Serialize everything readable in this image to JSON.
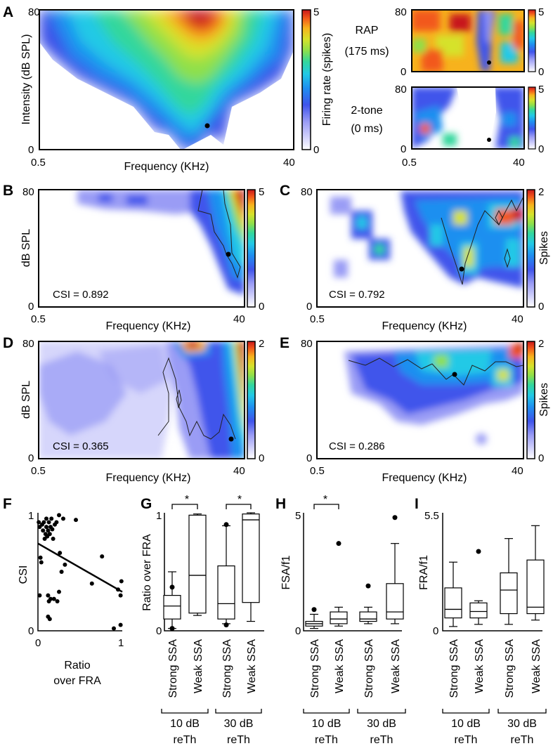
{
  "colors": {
    "cmap": [
      "#ffffff",
      "#d6d6fb",
      "#9a9cf5",
      "#4158ec",
      "#1f8ff0",
      "#22c9e6",
      "#33d79c",
      "#8fe04a",
      "#d6e22b",
      "#f7b21d",
      "#f2581a",
      "#c7161b"
    ]
  },
  "panels": [
    {
      "letter": "A",
      "xlabel": "Frequency (KHz)",
      "ylabel": "Intensity (dB SPL)",
      "xticks": [
        "0.5",
        "40"
      ],
      "yticks": [
        "0",
        "80"
      ],
      "cbar_label": "Firing rate (spikes)",
      "cbar_ticks": [
        "0",
        "5"
      ]
    },
    {
      "title_lines": [
        "RAP",
        "(175 ms)"
      ],
      "yticks": [
        "0",
        "80"
      ],
      "cbar_ticks": [
        "0",
        "5"
      ]
    },
    {
      "title_lines": [
        "2-tone",
        "(0 ms)"
      ],
      "xticks": [
        "0.5",
        "40"
      ],
      "yticks": [
        "0",
        "80"
      ],
      "cbar_ticks": [
        "0",
        "5"
      ]
    },
    {
      "letter": "B",
      "xlabel": "Frequency (KHz)",
      "ylabel": "dB SPL",
      "xticks": [
        "0.5",
        "40"
      ],
      "yticks": [
        "0",
        "80"
      ],
      "csi": "CSI = 0.892",
      "cbar_ticks": [
        "0",
        "5"
      ]
    },
    {
      "letter": "C",
      "xlabel": "Frequency (KHz)",
      "xticks": [
        "0.5",
        "40"
      ],
      "yticks": [
        "0",
        "80"
      ],
      "csi": "CSI = 0.792",
      "cbar_label": "Spikes",
      "cbar_ticks": [
        "0",
        "2"
      ]
    },
    {
      "letter": "D",
      "xlabel": "Frequency (KHz)",
      "ylabel": "dB SPL",
      "xticks": [
        "0.5",
        "40"
      ],
      "yticks": [
        "0",
        "80"
      ],
      "csi": "CSI = 0.365",
      "cbar_ticks": [
        "0",
        "2"
      ]
    },
    {
      "letter": "E",
      "xlabel": "Frequency (KHz)",
      "xticks": [
        "0.5",
        "40"
      ],
      "yticks": [
        "0",
        "80"
      ],
      "csi": "CSI = 0.286",
      "cbar_label": "Spikes",
      "cbar_ticks": [
        "0",
        "2"
      ]
    }
  ],
  "chart_data": [
    {
      "panel": "A",
      "type": "heatmap",
      "title": "",
      "x_range_khz": [
        0.5,
        40
      ],
      "y_range_db": [
        0,
        80
      ],
      "colorbar": [
        0,
        5
      ],
      "units": "spikes"
    },
    {
      "panel": "A-RAP",
      "type": "heatmap",
      "title": "RAP (175 ms)",
      "x_range_khz": [
        0.5,
        40
      ],
      "y_range_db": [
        0,
        80
      ],
      "colorbar": [
        0,
        5
      ]
    },
    {
      "panel": "A-2tone",
      "type": "heatmap",
      "title": "2-tone (0 ms)",
      "x_range_khz": [
        0.5,
        40
      ],
      "y_range_db": [
        0,
        80
      ],
      "colorbar": [
        0,
        5
      ]
    },
    {
      "panel": "B",
      "type": "heatmap",
      "x_range_khz": [
        0.5,
        40
      ],
      "y_range_db": [
        0,
        80
      ],
      "colorbar": [
        0,
        5
      ],
      "csi": 0.892
    },
    {
      "panel": "C",
      "type": "heatmap",
      "x_range_khz": [
        0.5,
        40
      ],
      "y_range_db": [
        0,
        80
      ],
      "colorbar": [
        0,
        2
      ],
      "csi": 0.792
    },
    {
      "panel": "D",
      "type": "heatmap",
      "x_range_khz": [
        0.5,
        40
      ],
      "y_range_db": [
        0,
        80
      ],
      "colorbar": [
        0,
        2
      ],
      "csi": 0.365
    },
    {
      "panel": "E",
      "type": "heatmap",
      "x_range_khz": [
        0.5,
        40
      ],
      "y_range_db": [
        0,
        80
      ],
      "colorbar": [
        0,
        2
      ],
      "csi": 0.286
    },
    {
      "panel": "F",
      "type": "scatter",
      "xlabel_lines": [
        "Ratio",
        "over FRA"
      ],
      "ylabel": "CSI",
      "xlim": [
        0,
        1
      ],
      "ylim": [
        0,
        1
      ],
      "xticks": [
        "0",
        "1"
      ],
      "yticks": [
        "0",
        "1"
      ],
      "points": [
        [
          0.01,
          0.92
        ],
        [
          0.02,
          0.88
        ],
        [
          0.03,
          0.62
        ],
        [
          0.04,
          0.58
        ],
        [
          0.05,
          0.9
        ],
        [
          0.06,
          0.85
        ],
        [
          0.07,
          0.92
        ],
        [
          0.08,
          0.78
        ],
        [
          0.09,
          0.82
        ],
        [
          0.1,
          0.95
        ],
        [
          0.1,
          0.88
        ],
        [
          0.11,
          0.8
        ],
        [
          0.12,
          0.85
        ],
        [
          0.13,
          0.92
        ],
        [
          0.14,
          0.82
        ],
        [
          0.15,
          0.88
        ],
        [
          0.16,
          0.95
        ],
        [
          0.17,
          0.86
        ],
        [
          0.18,
          0.78
        ],
        [
          0.2,
          0.9
        ],
        [
          0.22,
          0.92
        ],
        [
          0.25,
          0.98
        ],
        [
          0.26,
          0.66
        ],
        [
          0.32,
          0.56
        ],
        [
          0.12,
          0.3
        ],
        [
          0.13,
          0.25
        ],
        [
          0.15,
          0.27
        ],
        [
          0.19,
          0.27
        ],
        [
          0.23,
          0.25
        ],
        [
          0.25,
          0.33
        ],
        [
          0.28,
          0.5
        ],
        [
          0.3,
          0.95
        ],
        [
          0.12,
          0.12
        ],
        [
          0.14,
          0.1
        ],
        [
          0.45,
          0.94
        ],
        [
          0.64,
          0.4
        ],
        [
          0.76,
          0.63
        ],
        [
          0.9,
          0.02
        ],
        [
          0.95,
          0.35
        ],
        [
          0.98,
          0.3
        ],
        [
          0.99,
          0.42
        ],
        [
          0.98,
          0.05
        ],
        [
          0.02,
          0.3
        ]
      ],
      "fit": {
        "x": [
          0,
          1
        ],
        "y": [
          0.74,
          0.33
        ]
      }
    },
    {
      "panel": "G",
      "type": "box",
      "ylabel": "Ratio over FRA",
      "ylim": [
        0,
        1
      ],
      "yticks": [
        "0",
        "1"
      ],
      "categories": [
        "Strong SSA",
        "Weak SSA",
        "Strong SSA",
        "Weak SSA"
      ],
      "groups": [
        "10 dB reTh",
        "30 dB reTh"
      ],
      "significance": [
        "*",
        "*"
      ],
      "boxes": [
        {
          "min": 0.02,
          "q1": 0.1,
          "median": 0.21,
          "q3": 0.3,
          "max": 0.5,
          "outliers": [
            0.37,
            0.02
          ]
        },
        {
          "min": 0.13,
          "q1": 0.15,
          "median": 0.47,
          "q3": 0.98,
          "max": 0.99,
          "outliers": []
        },
        {
          "min": 0.06,
          "q1": 0.1,
          "median": 0.23,
          "q3": 0.55,
          "max": 0.89,
          "outliers": [
            0.9,
            0.05
          ]
        },
        {
          "min": 0.08,
          "q1": 0.24,
          "median": 0.94,
          "q3": 0.99,
          "max": 1.0,
          "outliers": []
        }
      ]
    },
    {
      "panel": "H",
      "type": "box",
      "ylabel": "FSA/f1",
      "ylim": [
        0,
        5
      ],
      "yticks": [
        "0",
        "5"
      ],
      "categories": [
        "Strong SSA",
        "Weak SSA",
        "Strong SSA",
        "Weak SSA"
      ],
      "groups": [
        "10 dB reTh",
        "30 dB reTh"
      ],
      "significance": [
        "*"
      ],
      "boxes": [
        {
          "min": 0.1,
          "q1": 0.2,
          "median": 0.3,
          "q3": 0.4,
          "max": 0.7,
          "outliers": [
            0.9
          ]
        },
        {
          "min": 0.2,
          "q1": 0.3,
          "median": 0.5,
          "q3": 0.8,
          "max": 1.0,
          "outliers": [
            3.7
          ]
        },
        {
          "min": 0.3,
          "q1": 0.4,
          "median": 0.5,
          "q3": 0.8,
          "max": 1.0,
          "outliers": [
            1.9
          ]
        },
        {
          "min": 0.3,
          "q1": 0.5,
          "median": 0.8,
          "q3": 2.0,
          "max": 3.7,
          "outliers": [
            4.8
          ]
        }
      ]
    },
    {
      "panel": "I",
      "type": "box",
      "ylabel": "FRA/f1",
      "ylim": [
        0,
        5.5
      ],
      "yticks": [
        "0",
        "5.5"
      ],
      "categories": [
        "Strong SSA",
        "Weak SSA",
        "Strong SSA",
        "Weak SSA"
      ],
      "groups": [
        "10 dB reTh",
        "30 dB reTh"
      ],
      "boxes": [
        {
          "min": 0.2,
          "q1": 0.6,
          "median": 1.0,
          "q3": 2.0,
          "max": 3.2,
          "outliers": []
        },
        {
          "min": 0.3,
          "q1": 0.6,
          "median": 0.9,
          "q3": 1.3,
          "max": 1.4,
          "outliers": [
            3.7
          ]
        },
        {
          "min": 0.3,
          "q1": 0.8,
          "median": 1.9,
          "q3": 2.7,
          "max": 4.3,
          "outliers": []
        },
        {
          "min": 0.5,
          "q1": 0.8,
          "median": 1.1,
          "q3": 3.3,
          "max": 4.9,
          "outliers": []
        }
      ]
    }
  ],
  "bottom": {
    "panels": [
      {
        "letter": "F",
        "ylabel": "CSI",
        "xlabel_lines": [
          "Ratio",
          "over FRA"
        ],
        "xticks": [
          "0",
          "1"
        ],
        "yticks": [
          "0",
          "1"
        ]
      },
      {
        "letter": "G",
        "ylabel": "Ratio over FRA",
        "yticks": [
          "0",
          "1"
        ],
        "stars": [
          "*",
          "*"
        ]
      },
      {
        "letter": "H",
        "ylabel": "FSA/f1",
        "yticks": [
          "0",
          "5"
        ],
        "stars": [
          "*"
        ]
      },
      {
        "letter": "I",
        "ylabel": "FRA/f1",
        "yticks": [
          "0",
          "5.5"
        ]
      }
    ],
    "cat": [
      "Strong SSA",
      "Weak SSA"
    ],
    "grp1": [
      "10 dB",
      "reTh"
    ],
    "grp2": [
      "30 dB",
      "reTh"
    ]
  }
}
